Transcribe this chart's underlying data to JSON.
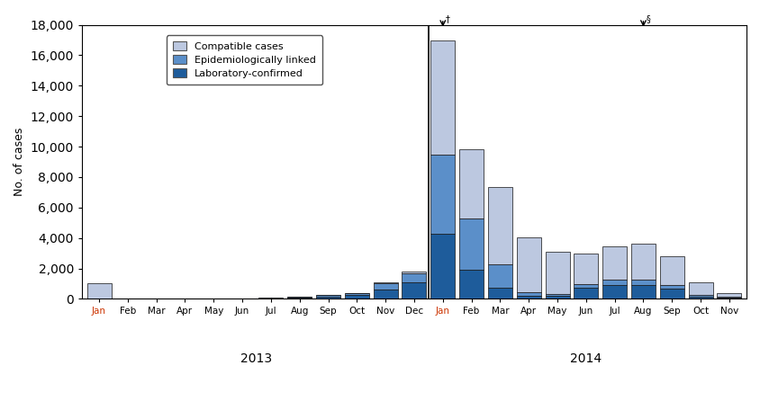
{
  "months_2013": [
    "Jan",
    "Feb",
    "Mar",
    "Apr",
    "May",
    "Jun",
    "Jul",
    "Aug",
    "Sep",
    "Oct",
    "Nov",
    "Dec"
  ],
  "months_2014": [
    "Jan",
    "Feb",
    "Mar",
    "Apr",
    "May",
    "Jun",
    "Jul",
    "Aug",
    "Sep",
    "Oct",
    "Nov"
  ],
  "compatible_2013": [
    1000,
    0,
    0,
    0,
    0,
    0,
    0,
    0,
    0,
    0,
    100,
    100
  ],
  "epi_linked_2013": [
    0,
    10,
    10,
    10,
    20,
    20,
    30,
    50,
    100,
    150,
    400,
    600
  ],
  "lab_confirmed_2013": [
    0,
    10,
    10,
    10,
    20,
    20,
    30,
    80,
    150,
    250,
    600,
    1100
  ],
  "compatible_2014": [
    7500,
    4500,
    5100,
    3600,
    2800,
    2000,
    2200,
    2400,
    1900,
    850,
    200
  ],
  "epi_linked_2014": [
    5200,
    3400,
    1500,
    250,
    100,
    200,
    350,
    350,
    200,
    100,
    50
  ],
  "lab_confirmed_2014": [
    4300,
    1900,
    750,
    200,
    200,
    750,
    900,
    900,
    700,
    150,
    100
  ],
  "color_compatible": "#bcc8e0",
  "color_epi_linked": "#5b8fc9",
  "color_lab_confirmed": "#1e5c9b",
  "color_outline": "#111111",
  "ylabel": "No. of cases",
  "year_label_2013": "2013",
  "year_label_2014": "2014",
  "ylim": [
    0,
    18000
  ],
  "yticks": [
    0,
    2000,
    4000,
    6000,
    8000,
    10000,
    12000,
    14000,
    16000,
    18000
  ],
  "legend_compatible": "Compatible cases",
  "legend_epi": "Epidemiologically linked",
  "legend_lab": "Laboratory-confirmed",
  "jan_color": "#cc3300",
  "default_tick_color": "#000000",
  "arrow1_bar_idx": 12,
  "arrow1_label": "†",
  "arrow2_bar_idx": 19,
  "arrow2_label": "§"
}
